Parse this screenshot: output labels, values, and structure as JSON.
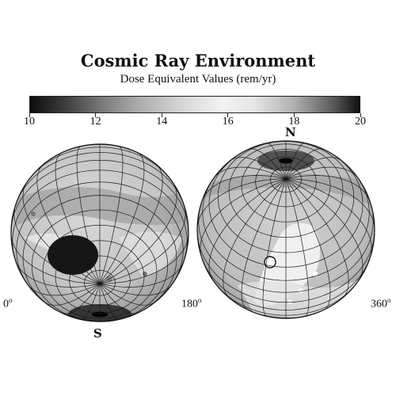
{
  "title": "Cosmic Ray Environment",
  "subtitle": "Dose Equivalent Values (rem/yr)",
  "colorbar": {
    "min": 10,
    "max": 20,
    "ticks": [
      {
        "value": 10,
        "label": "10"
      },
      {
        "value": 12,
        "label": "12"
      },
      {
        "value": 14,
        "label": "14"
      },
      {
        "value": 16,
        "label": "16"
      },
      {
        "value": 18,
        "label": "18"
      },
      {
        "value": 20,
        "label": "20"
      }
    ]
  },
  "poles": {
    "north": "N",
    "south": "S"
  },
  "longitude_labels": {
    "left": "0",
    "middle": "180",
    "right": "360",
    "degree_symbol": "o"
  },
  "colors": {
    "dark": "#111111",
    "light": "#f2f2f2",
    "grid": "#1a1a1a"
  }
}
